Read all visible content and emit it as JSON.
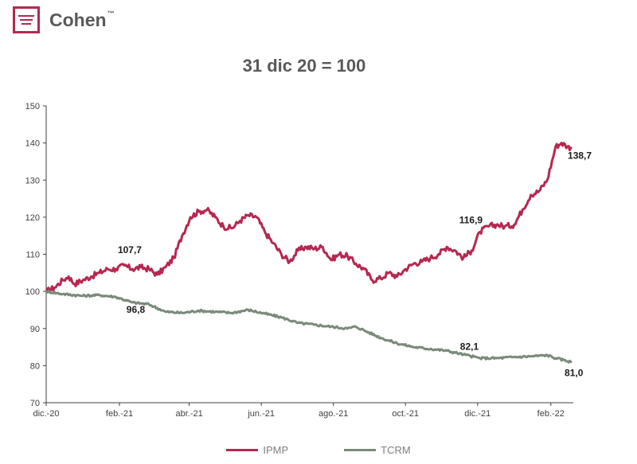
{
  "brand": {
    "name": "Cohen",
    "tm": "™"
  },
  "chart_data": {
    "type": "line",
    "title": "31 dic 20 = 100",
    "xlabel": "",
    "ylabel": "",
    "ylim": [
      70,
      150
    ],
    "yticks": [
      70,
      80,
      90,
      100,
      110,
      120,
      130,
      140,
      150
    ],
    "x_range": [
      "2020-12-01",
      "2022-02-20"
    ],
    "x_ticks": [
      {
        "date": "2020-12-01",
        "label": "dic.-20"
      },
      {
        "date": "2021-02-01",
        "label": "feb.-21"
      },
      {
        "date": "2021-04-01",
        "label": "abr.-21"
      },
      {
        "date": "2021-06-01",
        "label": "jun.-21"
      },
      {
        "date": "2021-08-01",
        "label": "ago.-21"
      },
      {
        "date": "2021-10-01",
        "label": "oct.-21"
      },
      {
        "date": "2021-12-01",
        "label": "dic.-21"
      },
      {
        "date": "2022-02-01",
        "label": "feb.-22"
      }
    ],
    "grid": false,
    "legend_position": "bottom",
    "series": [
      {
        "name": "IPMP",
        "color": "#b5284f",
        "points": [
          [
            "2020-12-01",
            100
          ],
          [
            "2020-12-08",
            101
          ],
          [
            "2020-12-15",
            103
          ],
          [
            "2020-12-20",
            104
          ],
          [
            "2020-12-25",
            102
          ],
          [
            "2021-01-01",
            103
          ],
          [
            "2021-01-08",
            104
          ],
          [
            "2021-01-15",
            105
          ],
          [
            "2021-01-22",
            106
          ],
          [
            "2021-01-29",
            106
          ],
          [
            "2021-02-05",
            107
          ],
          [
            "2021-02-12",
            106
          ],
          [
            "2021-02-19",
            106.5
          ],
          [
            "2021-02-26",
            106
          ],
          [
            "2021-03-05",
            104.5
          ],
          [
            "2021-03-12",
            106.5
          ],
          [
            "2021-03-19",
            109
          ],
          [
            "2021-03-26",
            115
          ],
          [
            "2021-04-02",
            120
          ],
          [
            "2021-04-09",
            121.5
          ],
          [
            "2021-04-16",
            122
          ],
          [
            "2021-04-23",
            120
          ],
          [
            "2021-04-30",
            117.5
          ],
          [
            "2021-05-07",
            117
          ],
          [
            "2021-05-14",
            119
          ],
          [
            "2021-05-21",
            120.5
          ],
          [
            "2021-05-28",
            120
          ],
          [
            "2021-06-04",
            116
          ],
          [
            "2021-06-11",
            113
          ],
          [
            "2021-06-18",
            110
          ],
          [
            "2021-06-25",
            108
          ],
          [
            "2021-07-02",
            111
          ],
          [
            "2021-07-09",
            112
          ],
          [
            "2021-07-16",
            111.5
          ],
          [
            "2021-07-23",
            112
          ],
          [
            "2021-07-30",
            108.5
          ],
          [
            "2021-08-06",
            110
          ],
          [
            "2021-08-13",
            109.5
          ],
          [
            "2021-08-20",
            107.5
          ],
          [
            "2021-08-27",
            106
          ],
          [
            "2021-09-03",
            103
          ],
          [
            "2021-09-10",
            103.5
          ],
          [
            "2021-09-17",
            105
          ],
          [
            "2021-09-24",
            104
          ],
          [
            "2021-10-01",
            106
          ],
          [
            "2021-10-08",
            107.5
          ],
          [
            "2021-10-15",
            108
          ],
          [
            "2021-10-22",
            109
          ],
          [
            "2021-10-29",
            110
          ],
          [
            "2021-11-05",
            112
          ],
          [
            "2021-11-12",
            111
          ],
          [
            "2021-11-19",
            109
          ],
          [
            "2021-11-26",
            111
          ],
          [
            "2021-12-03",
            116
          ],
          [
            "2021-12-10",
            117.5
          ],
          [
            "2021-12-17",
            118
          ],
          [
            "2021-12-24",
            117.5
          ],
          [
            "2022-01-01",
            118
          ],
          [
            "2022-01-08",
            122
          ],
          [
            "2022-01-15",
            126
          ],
          [
            "2022-01-22",
            127
          ],
          [
            "2022-01-29",
            130
          ],
          [
            "2022-02-05",
            139
          ],
          [
            "2022-02-10",
            140
          ],
          [
            "2022-02-15",
            139
          ],
          [
            "2022-02-18",
            138.7
          ]
        ]
      },
      {
        "name": "TCRM",
        "color": "#7a8a7a",
        "points": [
          [
            "2020-12-01",
            100
          ],
          [
            "2020-12-15",
            99.3
          ],
          [
            "2021-01-01",
            98.8
          ],
          [
            "2021-01-15",
            99
          ],
          [
            "2021-01-29",
            98.5
          ],
          [
            "2021-02-12",
            97
          ],
          [
            "2021-02-26",
            96.5
          ],
          [
            "2021-03-12",
            94.5
          ],
          [
            "2021-03-26",
            94.2
          ],
          [
            "2021-04-09",
            94.8
          ],
          [
            "2021-04-23",
            94.5
          ],
          [
            "2021-05-07",
            94.2
          ],
          [
            "2021-05-21",
            95
          ],
          [
            "2021-06-04",
            94
          ],
          [
            "2021-06-18",
            93
          ],
          [
            "2021-07-02",
            91.5
          ],
          [
            "2021-07-16",
            91
          ],
          [
            "2021-07-30",
            90.5
          ],
          [
            "2021-08-13",
            90
          ],
          [
            "2021-08-20",
            90.5
          ],
          [
            "2021-08-27",
            89.5
          ],
          [
            "2021-09-10",
            87.5
          ],
          [
            "2021-09-24",
            86
          ],
          [
            "2021-10-08",
            85
          ],
          [
            "2021-10-22",
            84.5
          ],
          [
            "2021-11-05",
            84
          ],
          [
            "2021-11-19",
            83
          ],
          [
            "2021-12-03",
            82
          ],
          [
            "2021-12-17",
            82
          ],
          [
            "2022-01-01",
            82.3
          ],
          [
            "2022-01-15",
            82.5
          ],
          [
            "2022-01-29",
            82.8
          ],
          [
            "2022-02-05",
            82
          ],
          [
            "2022-02-12",
            81.5
          ],
          [
            "2022-02-18",
            81
          ]
        ]
      }
    ],
    "annotations": [
      {
        "text": "107,7",
        "date": "2021-02-05",
        "value": 107.7
      },
      {
        "text": "96,8",
        "date": "2021-02-15",
        "value": 96.8
      },
      {
        "text": "116,9",
        "date": "2021-12-03",
        "value": 116.9
      },
      {
        "text": "82,1",
        "date": "2021-12-01",
        "value": 82.1
      },
      {
        "text": "138,7",
        "date": "2022-02-18",
        "value": 138.7
      },
      {
        "text": "81,0",
        "date": "2022-02-18",
        "value": 81.0
      }
    ]
  }
}
